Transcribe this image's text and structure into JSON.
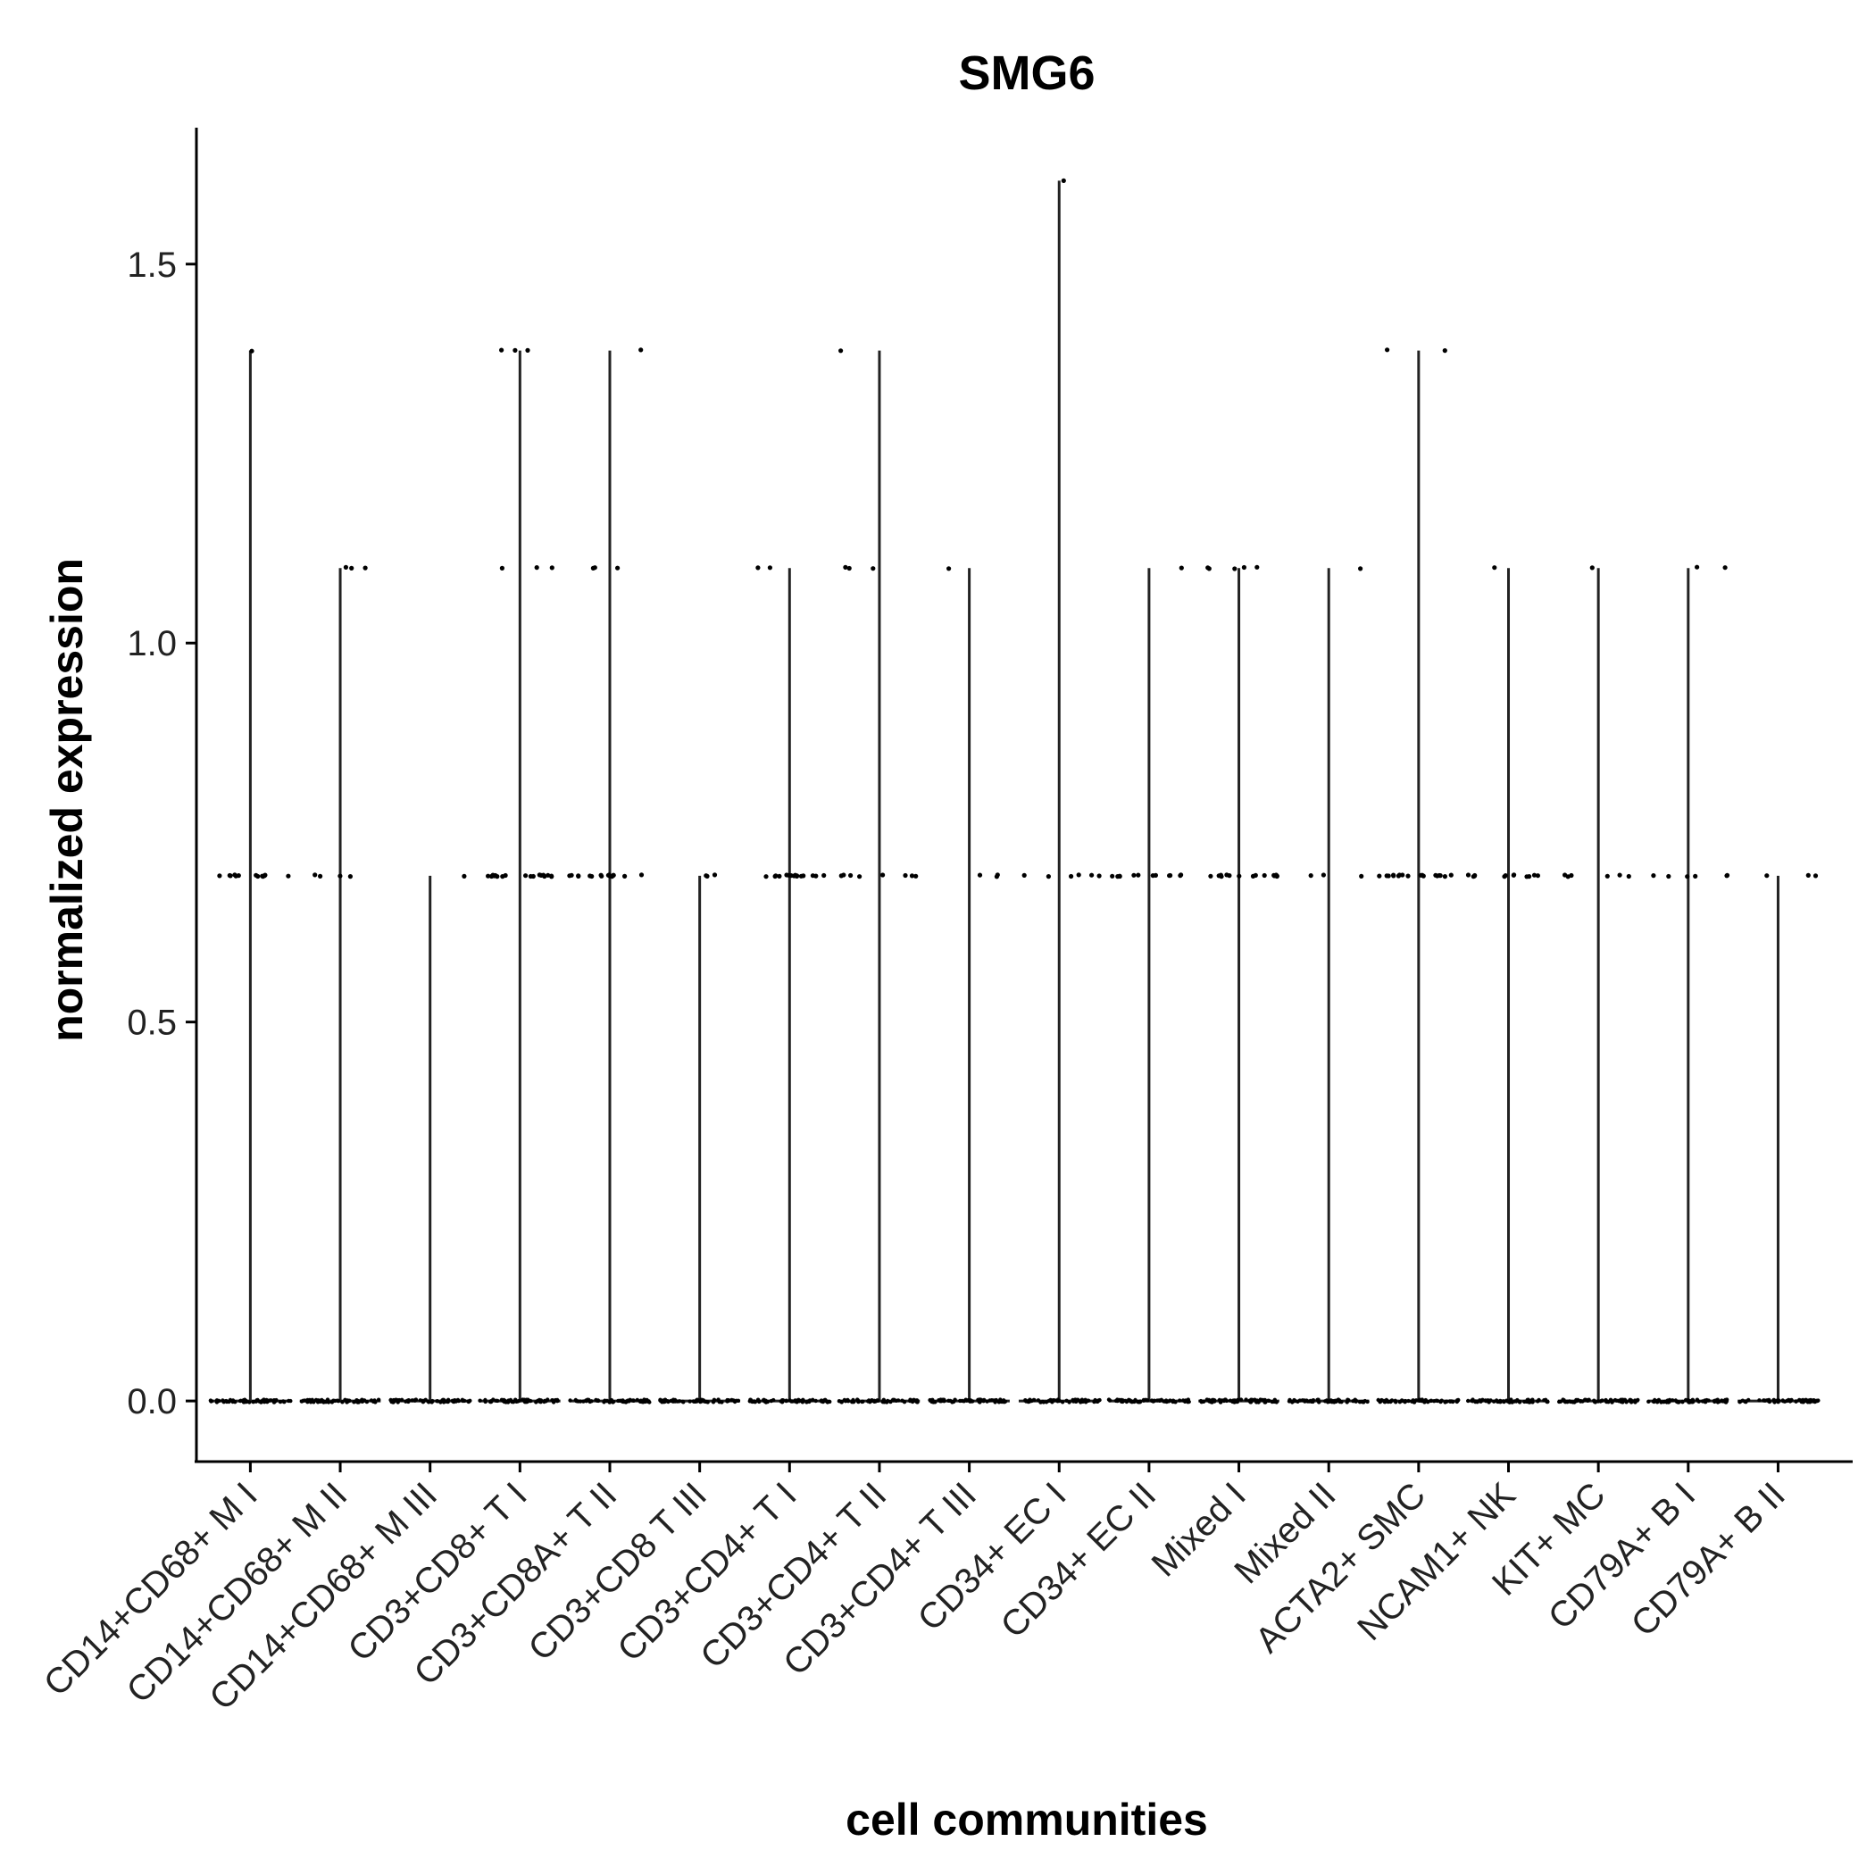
{
  "chart_data": {
    "type": "violin",
    "title": "SMG6",
    "xlabel": "cell communities",
    "ylabel": "normalized expression",
    "ylim": [
      -0.08,
      1.68
    ],
    "yticks": [
      0.0,
      0.5,
      1.0,
      1.5
    ],
    "ytick_labels": [
      "0.0",
      "0.5",
      "1.0",
      "1.5"
    ],
    "grid": false,
    "legend": "none",
    "point_color": "#000000",
    "line_color": "#222222",
    "levels": [
      0.0,
      0.693,
      1.099,
      1.386
    ],
    "categories": [
      {
        "label": "CD14+CD68+ M I",
        "max": 1.386,
        "counts": {
          "0.693": 14,
          "1.099": 0,
          "1.386": 1
        }
      },
      {
        "label": "CD14+CD68+ M II",
        "max": 1.099,
        "counts": {
          "0.693": 4,
          "1.099": 3,
          "1.386": 0
        }
      },
      {
        "label": "CD14+CD68+ M III",
        "max": 0.693,
        "counts": {
          "0.693": 1,
          "1.099": 0,
          "1.386": 0
        }
      },
      {
        "label": "CD3+CD8+ T I",
        "max": 1.386,
        "counts": {
          "0.693": 18,
          "1.099": 3,
          "1.386": 3
        }
      },
      {
        "label": "CD3+CD8A+ T II",
        "max": 1.386,
        "counts": {
          "0.693": 16,
          "1.099": 3,
          "1.386": 1
        }
      },
      {
        "label": "CD3+CD8 T III",
        "max": 0.693,
        "counts": {
          "0.693": 3,
          "1.099": 0,
          "1.386": 0
        }
      },
      {
        "label": "CD3+CD4+ T I",
        "max": 1.099,
        "counts": {
          "0.693": 16,
          "1.099": 2,
          "1.386": 0
        }
      },
      {
        "label": "CD3+CD4+ T II",
        "max": 1.386,
        "counts": {
          "0.693": 8,
          "1.099": 3,
          "1.386": 1
        }
      },
      {
        "label": "CD3+CD4+ T III",
        "max": 1.099,
        "counts": {
          "0.693": 3,
          "1.099": 1,
          "1.386": 0
        }
      },
      {
        "label": "CD34+ EC I",
        "max": 1.61,
        "counts": {
          "0.693": 6,
          "1.099": 0,
          "1.386": 0
        }
      },
      {
        "label": "CD34+ EC II",
        "max": 1.099,
        "counts": {
          "0.693": 12,
          "1.099": 1,
          "1.386": 0
        }
      },
      {
        "label": "Mixed I",
        "max": 1.099,
        "counts": {
          "0.693": 16,
          "1.099": 5,
          "1.386": 0
        }
      },
      {
        "label": "Mixed II",
        "max": 1.099,
        "counts": {
          "0.693": 3,
          "1.099": 1,
          "1.386": 0
        }
      },
      {
        "label": "ACTA2+ SMC",
        "max": 1.386,
        "counts": {
          "0.693": 18,
          "1.099": 0,
          "1.386": 2
        }
      },
      {
        "label": "NCAM1+ NK",
        "max": 1.099,
        "counts": {
          "0.693": 12,
          "1.099": 1,
          "1.386": 0
        }
      },
      {
        "label": "KIT+ MC",
        "max": 1.099,
        "counts": {
          "0.693": 6,
          "1.099": 1,
          "1.386": 0
        }
      },
      {
        "label": "CD79A+ B I",
        "max": 1.099,
        "counts": {
          "0.693": 6,
          "1.099": 2,
          "1.386": 0
        }
      },
      {
        "label": "CD79A+ B II",
        "max": 0.693,
        "counts": {
          "0.693": 3,
          "1.099": 0,
          "1.386": 0
        }
      }
    ]
  }
}
